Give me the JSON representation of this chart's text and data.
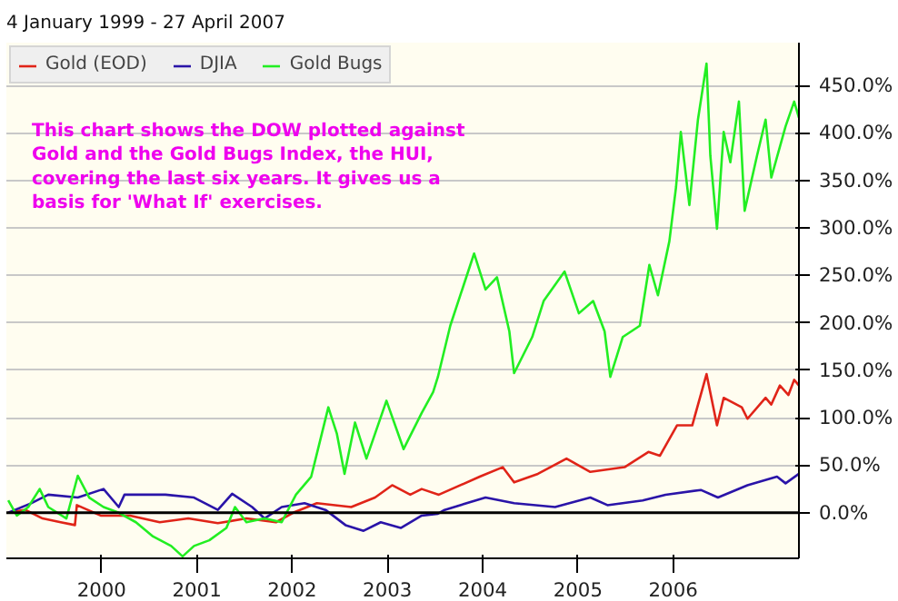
{
  "chart_data": {
    "type": "line",
    "title": "4 January 1999 - 27 April 2007",
    "annotations": [
      "This chart shows the DOW plotted against Gold and the Gold Bugs Index, the HUI, covering the last six years. It gives us a basis for 'What If' exercises."
    ],
    "series": [
      {
        "name": "Gold (EOD)",
        "color": "#e02418",
        "x": [
          1999.02,
          1999.2,
          1999.38,
          1999.57,
          1999.72,
          1999.74,
          1999.99,
          2000.3,
          2000.61,
          2000.91,
          2001.22,
          2001.52,
          2001.83,
          2002.01,
          2002.26,
          2002.62,
          2002.87,
          2003.05,
          2003.24,
          2003.36,
          2003.54,
          2003.97,
          2004.21,
          2004.33,
          2004.58,
          2004.88,
          2005.13,
          2005.49,
          2005.74,
          2005.86,
          2006.04,
          2006.2,
          2006.35,
          2006.46,
          2006.53,
          2006.72,
          2006.78,
          2006.97,
          2007.03,
          2007.12,
          2007.21,
          2007.27,
          2007.32
        ],
        "values": [
          0,
          3,
          -6,
          -10,
          -13,
          8,
          -3,
          -3,
          -10,
          -6,
          -11,
          -6,
          -10,
          0,
          10,
          6,
          16,
          29,
          19,
          25,
          19,
          38,
          48,
          32,
          41,
          57,
          43,
          48,
          64,
          60,
          92,
          92,
          146,
          92,
          121,
          111,
          99,
          121,
          114,
          134,
          124,
          140,
          134
        ]
      },
      {
        "name": "DJIA",
        "color": "#2a14a8",
        "x": [
          1999.02,
          1999.26,
          1999.44,
          1999.75,
          2000.02,
          2000.18,
          2000.24,
          2000.67,
          2000.97,
          2001.22,
          2001.37,
          2001.58,
          2001.71,
          2001.89,
          2002.13,
          2002.35,
          2002.56,
          2002.75,
          2002.93,
          2003.14,
          2003.36,
          2003.53,
          2003.6,
          2004.03,
          2004.33,
          2004.76,
          2005.13,
          2005.31,
          2005.68,
          2005.92,
          2006.29,
          2006.47,
          2006.78,
          2007.09,
          2007.18,
          2007.32
        ],
        "values": [
          0,
          10,
          19,
          16,
          25,
          6,
          19,
          19,
          16,
          3,
          20,
          6,
          -6,
          6,
          10,
          3,
          -13,
          -19,
          -10,
          -16,
          -3,
          -1,
          3,
          16,
          10,
          6,
          16,
          8,
          13,
          19,
          24,
          16,
          29,
          38,
          31,
          41
        ]
      },
      {
        "name": "Gold Bugs",
        "color": "#22ee22",
        "x": [
          1999.02,
          1999.11,
          1999.23,
          1999.35,
          1999.44,
          1999.63,
          1999.75,
          1999.87,
          2000.02,
          2000.18,
          2000.36,
          2000.54,
          2000.73,
          2000.85,
          2000.97,
          2001.13,
          2001.31,
          2001.4,
          2001.52,
          2001.71,
          2001.89,
          2002.04,
          2002.2,
          2002.38,
          2002.47,
          2002.55,
          2002.66,
          2002.78,
          2002.99,
          2003.17,
          2003.36,
          2003.48,
          2003.53,
          2003.66,
          2003.91,
          2004.03,
          2004.15,
          2004.28,
          2004.33,
          2004.52,
          2004.64,
          2004.86,
          2005.01,
          2005.16,
          2005.28,
          2005.34,
          2005.47,
          2005.65,
          2005.75,
          2005.84,
          2005.96,
          2006.03,
          2006.08,
          2006.17,
          2006.26,
          2006.35,
          2006.39,
          2006.46,
          2006.53,
          2006.6,
          2006.69,
          2006.75,
          2006.88,
          2006.97,
          2007.03,
          2007.18,
          2007.27,
          2007.32
        ],
        "values": [
          13,
          -3,
          6,
          25,
          6,
          -6,
          39,
          16,
          6,
          0,
          -10,
          -25,
          -35,
          -46,
          -35,
          -29,
          -16,
          6,
          -10,
          -6,
          -10,
          19,
          38,
          111,
          83,
          41,
          95,
          57,
          118,
          67,
          105,
          127,
          143,
          197,
          273,
          235,
          248,
          191,
          147,
          185,
          223,
          254,
          210,
          223,
          191,
          143,
          185,
          197,
          261,
          229,
          286,
          343,
          401,
          324,
          414,
          473,
          376,
          299,
          401,
          369,
          433,
          318,
          376,
          414,
          353,
          407,
          433,
          416
        ]
      }
    ],
    "xlim": [
      1999,
      2007.32
    ],
    "xticks": [
      {
        "value": 2000,
        "label": "2000"
      },
      {
        "value": 2001,
        "label": "2001"
      },
      {
        "value": 2002,
        "label": "2002"
      },
      {
        "value": 2003,
        "label": "2003"
      },
      {
        "value": 2004,
        "label": "2004"
      },
      {
        "value": 2005,
        "label": "2005"
      },
      {
        "value": 2006,
        "label": "2006"
      }
    ],
    "ylim": [
      -48,
      495
    ],
    "yticks": [
      {
        "value": 0,
        "label": "0.0%"
      },
      {
        "value": 50,
        "label": "50.0%"
      },
      {
        "value": 100,
        "label": "100.0%"
      },
      {
        "value": 150,
        "label": "150.0%"
      },
      {
        "value": 200,
        "label": "200.0%"
      },
      {
        "value": 250,
        "label": "250.0%"
      },
      {
        "value": 300,
        "label": "300.0%"
      },
      {
        "value": 350,
        "label": "350.0%"
      },
      {
        "value": 400,
        "label": "400.0%"
      },
      {
        "value": 450,
        "label": "450.0%"
      }
    ],
    "ref_lines": [
      {
        "axis": "y",
        "value": 0,
        "color": "#000000"
      }
    ],
    "grid": "y",
    "legend": "top left"
  }
}
